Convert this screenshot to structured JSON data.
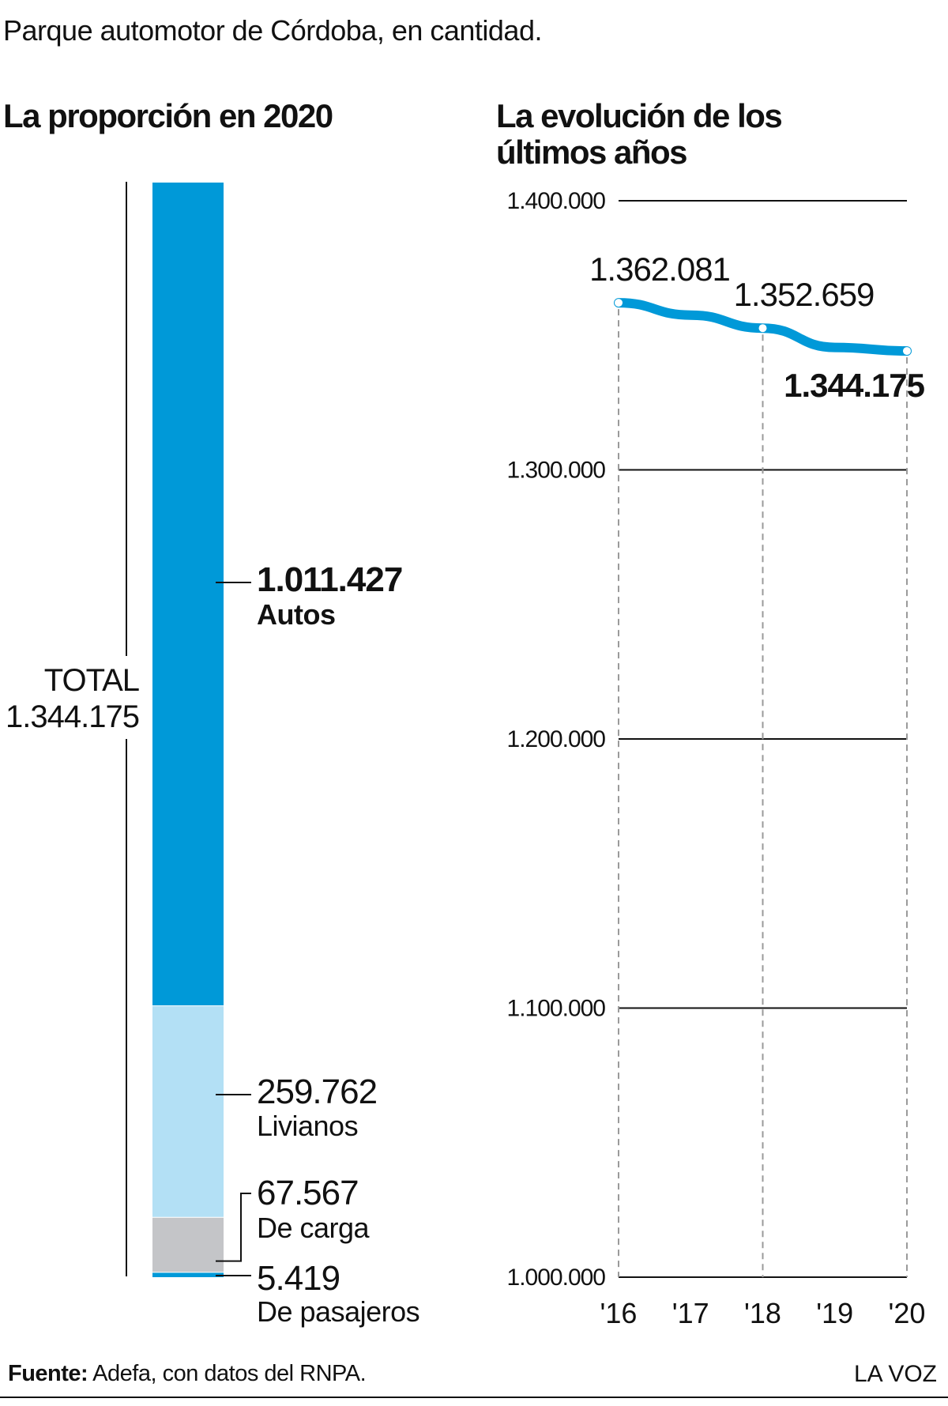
{
  "header": {
    "subtitle": "Parque automotor de Córdoba, en cantidad.",
    "left_title": "La proporción en 2020",
    "right_title": "La evolución de los últimos años"
  },
  "colors": {
    "autos": "#0099d8",
    "livianos": "#b3e0f5",
    "carga": "#c4c5c8",
    "pasajeros": "#0099d8",
    "line": "#0099d8",
    "text": "#111111"
  },
  "total": {
    "label": "TOTAL",
    "value": "1.344.175"
  },
  "segments": [
    {
      "value": "1.011.427",
      "name": "Autos",
      "bold_value": true
    },
    {
      "value": "259.762",
      "name": "Livianos",
      "bold_value": false
    },
    {
      "value": "67.567",
      "name": "De carga",
      "bold_value": false
    },
    {
      "value": "5.419",
      "name": "De pasajeros",
      "bold_value": false
    }
  ],
  "footer": {
    "source_label": "Fuente:",
    "source_text": " Adefa, con datos del RNPA.",
    "brand": "LA VOZ"
  },
  "chart_data": [
    {
      "type": "bar",
      "stacked": true,
      "title": "La proporción en 2020",
      "categories": [
        "2020"
      ],
      "series": [
        {
          "name": "Autos",
          "values": [
            1011427
          ]
        },
        {
          "name": "Livianos",
          "values": [
            259762
          ]
        },
        {
          "name": "De carga",
          "values": [
            67567
          ]
        },
        {
          "name": "De pasajeros",
          "values": [
            5419
          ]
        }
      ],
      "total": 1344175
    },
    {
      "type": "line",
      "title": "La evolución de los últimos años",
      "x": [
        "'16",
        "'17",
        "'18",
        "'19",
        "'20"
      ],
      "values": [
        1362081,
        1357500,
        1352659,
        1345500,
        1344175
      ],
      "labeled_points": [
        {
          "x": "'16",
          "label": "1.362.081",
          "bold": false
        },
        {
          "x": "'18",
          "label": "1.352.659",
          "bold": false
        },
        {
          "x": "'20",
          "label": "1.344.175",
          "bold": true
        }
      ],
      "marker_points": [
        "'16",
        "'18",
        "'20"
      ],
      "ylim": [
        1000000,
        1400000
      ],
      "yticks": [
        1000000,
        1100000,
        1200000,
        1300000,
        1400000
      ],
      "ytick_labels": [
        "1.000.000",
        "1.100.000",
        "1.200.000",
        "1.300.000",
        "1.400.000"
      ],
      "grid": true,
      "vertical_dashed_at": [
        "'16",
        "'18",
        "'20"
      ]
    }
  ]
}
